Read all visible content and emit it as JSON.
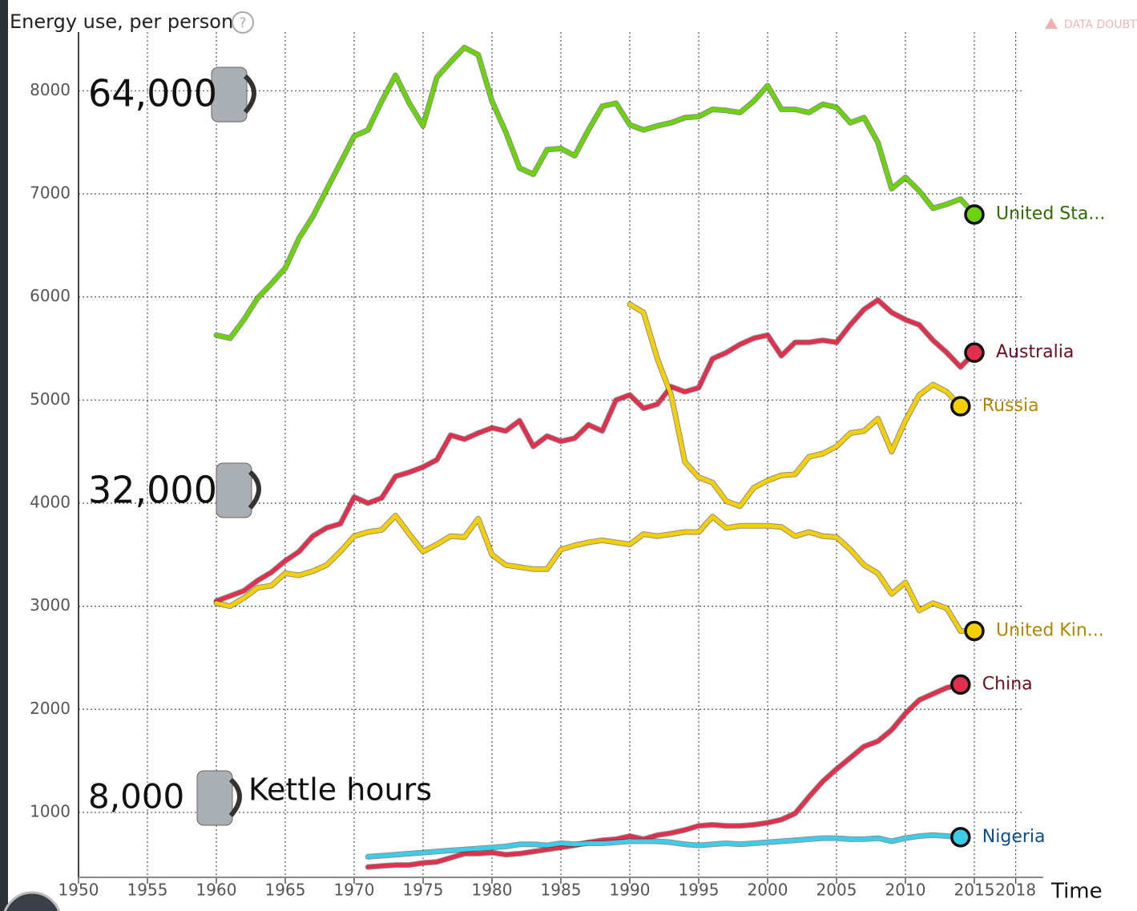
{
  "chart_data": {
    "type": "line",
    "title": "Energy use, per person",
    "x_label": "Time",
    "data_doubts": "DATA DOUBT",
    "annotations": [
      "64,000",
      "32,000",
      "8,000",
      "Kettle hours"
    ],
    "x": [
      1960,
      1961,
      1962,
      1963,
      1964,
      1965,
      1966,
      1967,
      1968,
      1969,
      1970,
      1971,
      1972,
      1973,
      1974,
      1975,
      1976,
      1977,
      1978,
      1979,
      1980,
      1981,
      1982,
      1983,
      1984,
      1985,
      1986,
      1987,
      1988,
      1989,
      1990,
      1991,
      1992,
      1993,
      1994,
      1995,
      1996,
      1997,
      1998,
      1999,
      2000,
      2001,
      2002,
      2003,
      2004,
      2005,
      2006,
      2007,
      2008,
      2009,
      2010,
      2011,
      2012,
      2013,
      2014,
      2015
    ],
    "series": [
      {
        "name": "United Sta...",
        "color": "#6cd20a",
        "label_color": "#2f6b00",
        "values": [
          5630,
          5600,
          5780,
          5990,
          6130,
          6280,
          6570,
          6780,
          7040,
          7300,
          7560,
          7620,
          7900,
          8150,
          7880,
          7660,
          8130,
          8280,
          8420,
          8350,
          7900,
          7600,
          7250,
          7190,
          7430,
          7440,
          7370,
          7620,
          7850,
          7880,
          7670,
          7620,
          7660,
          7690,
          7740,
          7750,
          7820,
          7810,
          7790,
          7900,
          8050,
          7820,
          7820,
          7790,
          7870,
          7840,
          7690,
          7740,
          7500,
          7050,
          7160,
          7030,
          6860,
          6900,
          6950,
          6800
        ]
      },
      {
        "name": "Australia",
        "color": "#e0304e",
        "label_color": "#6b0f1e",
        "values": [
          3050,
          3100,
          3150,
          3250,
          3330,
          3440,
          3530,
          3680,
          3760,
          3800,
          4060,
          4000,
          4050,
          4260,
          4300,
          4350,
          4420,
          4660,
          4620,
          4680,
          4730,
          4700,
          4800,
          4550,
          4650,
          4600,
          4630,
          4760,
          4700,
          5000,
          5050,
          4920,
          4960,
          5130,
          5080,
          5120,
          5400,
          5460,
          5540,
          5600,
          5630,
          5430,
          5560,
          5560,
          5580,
          5560,
          5730,
          5880,
          5970,
          5850,
          5780,
          5730,
          5580,
          5460,
          5320,
          5460
        ]
      },
      {
        "name": "Russia",
        "color": "#f5d000",
        "label_color": "#b38600",
        "values": [
          null,
          null,
          null,
          null,
          null,
          null,
          null,
          null,
          null,
          null,
          null,
          null,
          null,
          null,
          null,
          null,
          null,
          null,
          null,
          null,
          null,
          null,
          null,
          null,
          null,
          null,
          null,
          null,
          null,
          null,
          5930,
          5850,
          5400,
          5050,
          4400,
          4250,
          4200,
          4020,
          3970,
          4150,
          4220,
          4270,
          4280,
          4450,
          4480,
          4550,
          4680,
          4700,
          4820,
          4500,
          4800,
          5050,
          5150,
          5080,
          4940,
          null
        ]
      },
      {
        "name": "United Kin...",
        "color": "#f5d000",
        "label_color": "#b38600",
        "values": [
          3030,
          3000,
          3080,
          3180,
          3200,
          3320,
          3300,
          3340,
          3400,
          3530,
          3680,
          3720,
          3740,
          3880,
          3700,
          3530,
          3600,
          3680,
          3670,
          3850,
          3500,
          3400,
          3380,
          3360,
          3360,
          3550,
          3590,
          3620,
          3640,
          3620,
          3600,
          3700,
          3680,
          3700,
          3720,
          3720,
          3870,
          3760,
          3780,
          3780,
          3780,
          3770,
          3680,
          3720,
          3680,
          3670,
          3550,
          3400,
          3320,
          3120,
          3230,
          2960,
          3030,
          2980,
          2760,
          2760
        ]
      },
      {
        "name": "China",
        "color": "#e0304e",
        "label_color": "#6b0f1e",
        "values": [
          null,
          null,
          null,
          null,
          null,
          null,
          null,
          null,
          null,
          null,
          null,
          470,
          480,
          490,
          490,
          510,
          520,
          560,
          600,
          600,
          610,
          590,
          600,
          620,
          640,
          660,
          680,
          710,
          730,
          740,
          770,
          740,
          780,
          800,
          830,
          870,
          880,
          870,
          870,
          880,
          900,
          930,
          990,
          1150,
          1300,
          1420,
          1530,
          1640,
          1690,
          1800,
          1960,
          2090,
          2150,
          2210,
          2240,
          null
        ]
      },
      {
        "name": "Nigeria",
        "color": "#3dcde8",
        "label_color": "#0b4f8a",
        "values": [
          null,
          null,
          null,
          null,
          null,
          null,
          null,
          null,
          null,
          null,
          null,
          570,
          580,
          590,
          600,
          610,
          620,
          630,
          640,
          650,
          660,
          670,
          690,
          690,
          680,
          700,
          690,
          700,
          700,
          710,
          720,
          720,
          720,
          710,
          690,
          680,
          690,
          700,
          690,
          700,
          710,
          720,
          730,
          740,
          750,
          750,
          740,
          740,
          750,
          720,
          750,
          770,
          780,
          770,
          760,
          null
        ]
      }
    ],
    "xlim": [
      1950,
      2020
    ],
    "ylim": [
      370,
      8570
    ],
    "xticks": [
      1950,
      1955,
      1960,
      1965,
      1970,
      1975,
      1980,
      1985,
      1990,
      1995,
      2000,
      2005,
      2010,
      2015,
      2018
    ],
    "yticks": [
      1000,
      2000,
      3000,
      4000,
      5000,
      6000,
      7000,
      8000
    ],
    "grid": true
  }
}
